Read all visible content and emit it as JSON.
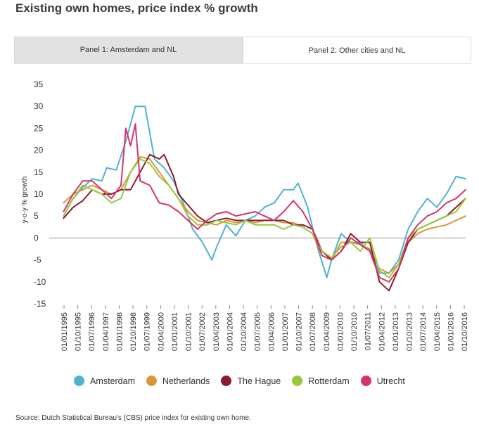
{
  "title": "Existing own homes, price index % growth",
  "tabs": [
    {
      "label": "Panel 1: Amsterdam and NL"
    },
    {
      "label": "Panel 2: Other cities and NL"
    }
  ],
  "source": "Source: Dutch Statistical Bureau's (CBS) price index for existing own home.",
  "chart_data": {
    "type": "line",
    "ylabel": "y-o-y % growth",
    "ylim": [
      -15,
      35
    ],
    "yticks": [
      35,
      30,
      25,
      20,
      15,
      10,
      5,
      0,
      -5,
      -10,
      -15
    ],
    "xticks": [
      "01/01/1995",
      "01/10/1995",
      "01/07/1996",
      "01/04/1997",
      "01/01/1998",
      "01/10/1998",
      "01/07/1999",
      "01/04/2000",
      "01/01/2001",
      "01/10/2001",
      "01/07/2002",
      "01/04/2003",
      "01/01/2004",
      "01/10/2004",
      "01/07/2005",
      "01/04/2006",
      "01/01/2007",
      "01/10/2007",
      "01/07/2008",
      "01/04/2009",
      "01/01/2010",
      "01/10/2010",
      "01/07/2011",
      "01/04/2012",
      "01/01/2013",
      "01/10/2013",
      "01/07/2014",
      "01/04/2015",
      "01/01/2016",
      "01/10/2016"
    ],
    "legend_position": "bottom",
    "series": [
      {
        "name": "Amsterdam",
        "color": "#4fb3cf",
        "points": [
          [
            "1995-10-01",
            5
          ],
          [
            "1996-04-01",
            9
          ],
          [
            "1996-10-01",
            11.5
          ],
          [
            "1997-04-01",
            13.5
          ],
          [
            "1997-10-01",
            13
          ],
          [
            "1998-01-01",
            16
          ],
          [
            "1998-07-01",
            15.5
          ],
          [
            "1999-01-01",
            22
          ],
          [
            "1999-07-01",
            30
          ],
          [
            "2000-01-01",
            30
          ],
          [
            "2000-07-01",
            18
          ],
          [
            "2001-01-01",
            16
          ],
          [
            "2001-07-01",
            13
          ],
          [
            "2002-01-01",
            8
          ],
          [
            "2002-07-01",
            2
          ],
          [
            "2003-01-01",
            -1
          ],
          [
            "2003-07-01",
            -5
          ],
          [
            "2003-10-01",
            -2
          ],
          [
            "2004-04-01",
            3
          ],
          [
            "2004-10-01",
            0.5
          ],
          [
            "2005-04-01",
            4
          ],
          [
            "2005-10-01",
            5
          ],
          [
            "2006-04-01",
            7
          ],
          [
            "2006-10-01",
            8
          ],
          [
            "2007-04-01",
            11
          ],
          [
            "2007-10-01",
            11
          ],
          [
            "2008-01-01",
            12.5
          ],
          [
            "2008-07-01",
            7
          ],
          [
            "2009-01-01",
            -2
          ],
          [
            "2009-07-01",
            -9
          ],
          [
            "2009-10-01",
            -5
          ],
          [
            "2010-04-01",
            1
          ],
          [
            "2010-10-01",
            -1
          ],
          [
            "2011-04-01",
            -1
          ],
          [
            "2011-10-01",
            -3
          ],
          [
            "2012-04-01",
            -8
          ],
          [
            "2012-10-01",
            -8
          ],
          [
            "2013-04-01",
            -5
          ],
          [
            "2013-10-01",
            2
          ],
          [
            "2014-04-01",
            6
          ],
          [
            "2014-10-01",
            9
          ],
          [
            "2015-04-01",
            7
          ],
          [
            "2015-10-01",
            10
          ],
          [
            "2016-04-01",
            14
          ],
          [
            "2016-10-01",
            13.5
          ]
        ]
      },
      {
        "name": "Netherlands",
        "color": "#d9963a",
        "points": [
          [
            "1995-10-01",
            8
          ],
          [
            "1996-04-01",
            10
          ],
          [
            "1996-10-01",
            11
          ],
          [
            "1997-04-01",
            12
          ],
          [
            "1997-10-01",
            11
          ],
          [
            "1998-04-01",
            10
          ],
          [
            "1998-10-01",
            11
          ],
          [
            "1999-04-01",
            15
          ],
          [
            "1999-10-01",
            18.5
          ],
          [
            "2000-04-01",
            18
          ],
          [
            "2000-10-01",
            15
          ],
          [
            "2001-04-01",
            12
          ],
          [
            "2001-10-01",
            9
          ],
          [
            "2002-04-01",
            6
          ],
          [
            "2002-10-01",
            4
          ],
          [
            "2003-04-01",
            3.5
          ],
          [
            "2003-10-01",
            3
          ],
          [
            "2004-04-01",
            4
          ],
          [
            "2004-10-01",
            3.5
          ],
          [
            "2005-04-01",
            4
          ],
          [
            "2005-10-01",
            3.5
          ],
          [
            "2006-04-01",
            4
          ],
          [
            "2006-10-01",
            4
          ],
          [
            "2007-04-01",
            3.5
          ],
          [
            "2007-10-01",
            3.5
          ],
          [
            "2008-04-01",
            2.5
          ],
          [
            "2008-10-01",
            1
          ],
          [
            "2009-04-01",
            -4
          ],
          [
            "2009-10-01",
            -5
          ],
          [
            "2010-04-01",
            -1
          ],
          [
            "2010-10-01",
            -1
          ],
          [
            "2011-04-01",
            -1.5
          ],
          [
            "2011-10-01",
            -2.5
          ],
          [
            "2012-04-01",
            -7
          ],
          [
            "2012-10-01",
            -8
          ],
          [
            "2013-04-01",
            -6
          ],
          [
            "2013-10-01",
            -1
          ],
          [
            "2014-04-01",
            1
          ],
          [
            "2014-10-01",
            2
          ],
          [
            "2015-04-01",
            2.5
          ],
          [
            "2015-10-01",
            3
          ],
          [
            "2016-04-01",
            4
          ],
          [
            "2016-10-01",
            5
          ]
        ]
      },
      {
        "name": "The Hague",
        "color": "#8c1c2b",
        "points": [
          [
            "1995-10-01",
            4.5
          ],
          [
            "1996-04-01",
            7
          ],
          [
            "1996-10-01",
            8.5
          ],
          [
            "1997-04-01",
            11
          ],
          [
            "1997-10-01",
            10
          ],
          [
            "1998-04-01",
            10
          ],
          [
            "1998-10-01",
            11
          ],
          [
            "1999-04-01",
            11
          ],
          [
            "1999-10-01",
            15
          ],
          [
            "2000-04-01",
            19
          ],
          [
            "2000-10-01",
            18
          ],
          [
            "2001-01-01",
            19
          ],
          [
            "2001-07-01",
            14
          ],
          [
            "2001-10-01",
            10
          ],
          [
            "2002-04-01",
            7.5
          ],
          [
            "2002-10-01",
            5
          ],
          [
            "2003-04-01",
            3.5
          ],
          [
            "2003-10-01",
            4
          ],
          [
            "2004-04-01",
            4.5
          ],
          [
            "2004-10-01",
            4
          ],
          [
            "2005-04-01",
            4
          ],
          [
            "2005-10-01",
            4
          ],
          [
            "2006-04-01",
            4
          ],
          [
            "2006-10-01",
            4
          ],
          [
            "2007-04-01",
            4
          ],
          [
            "2007-10-01",
            3
          ],
          [
            "2008-04-01",
            3
          ],
          [
            "2008-10-01",
            2
          ],
          [
            "2009-04-01",
            -3
          ],
          [
            "2009-10-01",
            -5
          ],
          [
            "2010-04-01",
            -3
          ],
          [
            "2010-10-01",
            1
          ],
          [
            "2011-04-01",
            -1
          ],
          [
            "2011-10-01",
            -1
          ],
          [
            "2012-04-01",
            -10
          ],
          [
            "2012-10-01",
            -12
          ],
          [
            "2013-04-01",
            -7
          ],
          [
            "2013-10-01",
            -1
          ],
          [
            "2014-04-01",
            2
          ],
          [
            "2014-10-01",
            3
          ],
          [
            "2015-04-01",
            4
          ],
          [
            "2015-10-01",
            5
          ],
          [
            "2016-04-01",
            7
          ],
          [
            "2016-10-01",
            9
          ]
        ]
      },
      {
        "name": "Rotterdam",
        "color": "#97c93d",
        "points": [
          [
            "1995-10-01",
            5
          ],
          [
            "1996-04-01",
            9
          ],
          [
            "1996-10-01",
            12
          ],
          [
            "1997-04-01",
            11
          ],
          [
            "1997-10-01",
            10
          ],
          [
            "1998-04-01",
            8
          ],
          [
            "1998-10-01",
            9
          ],
          [
            "1999-04-01",
            15
          ],
          [
            "1999-10-01",
            18
          ],
          [
            "2000-04-01",
            17
          ],
          [
            "2000-10-01",
            14
          ],
          [
            "2001-04-01",
            12
          ],
          [
            "2001-10-01",
            9
          ],
          [
            "2002-04-01",
            5
          ],
          [
            "2002-10-01",
            3
          ],
          [
            "2003-04-01",
            3
          ],
          [
            "2003-10-01",
            4
          ],
          [
            "2004-04-01",
            3.5
          ],
          [
            "2004-10-01",
            3
          ],
          [
            "2005-04-01",
            4
          ],
          [
            "2005-10-01",
            3
          ],
          [
            "2006-04-01",
            3
          ],
          [
            "2006-10-01",
            3
          ],
          [
            "2007-04-01",
            2
          ],
          [
            "2007-10-01",
            3
          ],
          [
            "2008-04-01",
            2.5
          ],
          [
            "2008-10-01",
            1
          ],
          [
            "2009-04-01",
            -3
          ],
          [
            "2009-10-01",
            -4.5
          ],
          [
            "2010-04-01",
            -2
          ],
          [
            "2010-10-01",
            -1
          ],
          [
            "2011-04-01",
            -3
          ],
          [
            "2011-10-01",
            0
          ],
          [
            "2012-04-01",
            -7.5
          ],
          [
            "2012-10-01",
            -9
          ],
          [
            "2013-04-01",
            -6
          ],
          [
            "2013-10-01",
            0
          ],
          [
            "2014-04-01",
            2
          ],
          [
            "2014-10-01",
            3
          ],
          [
            "2015-04-01",
            4
          ],
          [
            "2015-10-01",
            5
          ],
          [
            "2016-04-01",
            6
          ],
          [
            "2016-10-01",
            9
          ]
        ]
      },
      {
        "name": "Utrecht",
        "color": "#d4346d",
        "points": [
          [
            "1995-10-01",
            6
          ],
          [
            "1996-04-01",
            10
          ],
          [
            "1996-10-01",
            13
          ],
          [
            "1997-04-01",
            13
          ],
          [
            "1997-10-01",
            11
          ],
          [
            "1998-04-01",
            9
          ],
          [
            "1998-10-01",
            12
          ],
          [
            "1999-01-01",
            25
          ],
          [
            "1999-04-01",
            21
          ],
          [
            "1999-07-01",
            26
          ],
          [
            "1999-10-01",
            13
          ],
          [
            "2000-04-01",
            12
          ],
          [
            "2000-10-01",
            8
          ],
          [
            "2001-04-01",
            7.5
          ],
          [
            "2001-10-01",
            6
          ],
          [
            "2002-04-01",
            4
          ],
          [
            "2002-10-01",
            2
          ],
          [
            "2003-04-01",
            4
          ],
          [
            "2003-10-01",
            5.5
          ],
          [
            "2004-04-01",
            6
          ],
          [
            "2004-10-01",
            5
          ],
          [
            "2005-04-01",
            5.5
          ],
          [
            "2005-10-01",
            6
          ],
          [
            "2006-04-01",
            5
          ],
          [
            "2006-10-01",
            4
          ],
          [
            "2007-04-01",
            6
          ],
          [
            "2007-10-01",
            8.5
          ],
          [
            "2008-04-01",
            6
          ],
          [
            "2008-10-01",
            2
          ],
          [
            "2009-04-01",
            -4
          ],
          [
            "2009-10-01",
            -5
          ],
          [
            "2010-04-01",
            -3
          ],
          [
            "2010-10-01",
            0
          ],
          [
            "2011-04-01",
            -1.5
          ],
          [
            "2011-10-01",
            -3
          ],
          [
            "2012-04-01",
            -9
          ],
          [
            "2012-10-01",
            -10
          ],
          [
            "2013-04-01",
            -7
          ],
          [
            "2013-10-01",
            0
          ],
          [
            "2014-04-01",
            3
          ],
          [
            "2014-10-01",
            5
          ],
          [
            "2015-04-01",
            6
          ],
          [
            "2015-10-01",
            8
          ],
          [
            "2016-04-01",
            9
          ],
          [
            "2016-10-01",
            11
          ]
        ]
      }
    ]
  }
}
